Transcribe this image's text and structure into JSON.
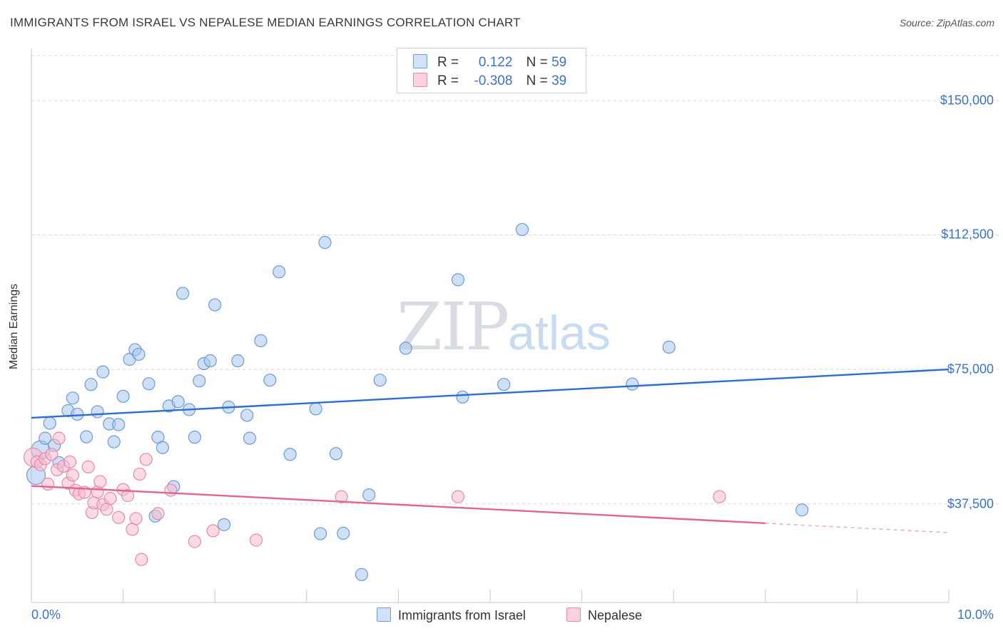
{
  "header": {
    "title": "IMMIGRANTS FROM ISRAEL VS NEPALESE MEDIAN EARNINGS CORRELATION CHART",
    "source": "Source: ZipAtlas.com"
  },
  "watermark": {
    "zip": "ZIP",
    "atlas": "atlas"
  },
  "legend": {
    "r_label": "R =",
    "n_label": "N =",
    "rows": [
      {
        "r": "0.122",
        "n": "59",
        "color": "#a8c6ee"
      },
      {
        "r": "-0.308",
        "n": "39",
        "color": "#f4b5c8"
      }
    ]
  },
  "colors": {
    "israel_fill": "#a8c6ee",
    "israel_stroke": "#6b9bd8",
    "israel_line": "#2a6fcc",
    "nepal_fill": "#f6bcd0",
    "nepal_stroke": "#e88aa8",
    "nepal_line": "#e0668f",
    "grid": "#d8d8d8",
    "axis_text": "#3b73c9"
  },
  "chart_data": {
    "type": "scatter",
    "title": "IMMIGRANTS FROM ISRAEL VS NEPALESE MEDIAN EARNINGS CORRELATION CHART",
    "xlabel": "",
    "ylabel": "Median Earnings",
    "xlim": [
      0,
      10
    ],
    "ylim": [
      10000,
      162500
    ],
    "y_ticks": [
      37500,
      75000,
      112500,
      150000
    ],
    "y_tick_labels": [
      "$37,500",
      "$75,000",
      "$112,500",
      "$150,000"
    ],
    "x_tick_labels": [
      "0.0%",
      "10.0%"
    ],
    "grid": true,
    "series": [
      {
        "name": "Immigrants from Israel",
        "points": [
          [
            0.05,
            45500
          ],
          [
            0.1,
            52500
          ],
          [
            0.15,
            55800
          ],
          [
            0.2,
            60000
          ],
          [
            0.25,
            53800
          ],
          [
            0.3,
            49000
          ],
          [
            0.4,
            63500
          ],
          [
            0.45,
            67000
          ],
          [
            0.5,
            62500
          ],
          [
            0.6,
            56200
          ],
          [
            0.65,
            70800
          ],
          [
            0.72,
            63200
          ],
          [
            0.78,
            74300
          ],
          [
            0.85,
            59800
          ],
          [
            0.9,
            54800
          ],
          [
            0.95,
            59600
          ],
          [
            1.0,
            67500
          ],
          [
            1.07,
            77800
          ],
          [
            1.13,
            80500
          ],
          [
            1.17,
            79200
          ],
          [
            1.28,
            71000
          ],
          [
            1.35,
            34100
          ],
          [
            1.38,
            56100
          ],
          [
            1.43,
            53200
          ],
          [
            1.5,
            64800
          ],
          [
            1.55,
            42300
          ],
          [
            1.6,
            66000
          ],
          [
            1.65,
            96200
          ],
          [
            1.72,
            63800
          ],
          [
            1.78,
            56100
          ],
          [
            1.83,
            71800
          ],
          [
            1.88,
            76600
          ],
          [
            1.95,
            77400
          ],
          [
            2.0,
            93000
          ],
          [
            2.1,
            31700
          ],
          [
            2.15,
            64500
          ],
          [
            2.25,
            77400
          ],
          [
            2.35,
            62200
          ],
          [
            2.38,
            55800
          ],
          [
            2.5,
            83000
          ],
          [
            2.6,
            72000
          ],
          [
            2.7,
            102200
          ],
          [
            2.82,
            51300
          ],
          [
            3.1,
            64000
          ],
          [
            3.15,
            29200
          ],
          [
            3.2,
            110400
          ],
          [
            3.32,
            51500
          ],
          [
            3.4,
            29300
          ],
          [
            3.6,
            17800
          ],
          [
            3.68,
            40000
          ],
          [
            3.8,
            72000
          ],
          [
            4.08,
            80900
          ],
          [
            4.65,
            100000
          ],
          [
            4.7,
            67300
          ],
          [
            5.15,
            70800
          ],
          [
            5.35,
            114000
          ],
          [
            6.55,
            70900
          ],
          [
            6.95,
            81200
          ],
          [
            8.4,
            35800
          ]
        ]
      },
      {
        "name": "Nepalese",
        "points": [
          [
            0.02,
            50500
          ],
          [
            0.06,
            49200
          ],
          [
            0.1,
            48400
          ],
          [
            0.15,
            50100
          ],
          [
            0.18,
            43000
          ],
          [
            0.22,
            51300
          ],
          [
            0.28,
            47000
          ],
          [
            0.3,
            55800
          ],
          [
            0.35,
            48000
          ],
          [
            0.4,
            43300
          ],
          [
            0.42,
            49200
          ],
          [
            0.45,
            45500
          ],
          [
            0.48,
            41300
          ],
          [
            0.52,
            40300
          ],
          [
            0.58,
            40700
          ],
          [
            0.62,
            47800
          ],
          [
            0.66,
            35100
          ],
          [
            0.68,
            37800
          ],
          [
            0.72,
            40800
          ],
          [
            0.75,
            43700
          ],
          [
            0.78,
            37300
          ],
          [
            0.82,
            36000
          ],
          [
            0.86,
            39000
          ],
          [
            0.95,
            33700
          ],
          [
            1.0,
            41500
          ],
          [
            1.05,
            39800
          ],
          [
            1.1,
            30400
          ],
          [
            1.14,
            33400
          ],
          [
            1.18,
            45800
          ],
          [
            1.25,
            49900
          ],
          [
            1.2,
            22000
          ],
          [
            1.38,
            34800
          ],
          [
            1.52,
            41300
          ],
          [
            1.78,
            27000
          ],
          [
            1.98,
            30000
          ],
          [
            2.45,
            27400
          ],
          [
            3.38,
            39500
          ],
          [
            4.65,
            39500
          ],
          [
            7.5,
            39500
          ]
        ]
      }
    ],
    "trend_lines": [
      {
        "series": "Immigrants from Israel",
        "x": [
          0,
          10
        ],
        "y": [
          61500,
          75000
        ]
      },
      {
        "series": "Nepalese",
        "x": [
          0,
          10
        ],
        "y": [
          42500,
          29500
        ],
        "solid_until_x": 8
      }
    ]
  },
  "bottom_legend": [
    {
      "label": "Immigrants from Israel"
    },
    {
      "label": "Nepalese"
    }
  ]
}
